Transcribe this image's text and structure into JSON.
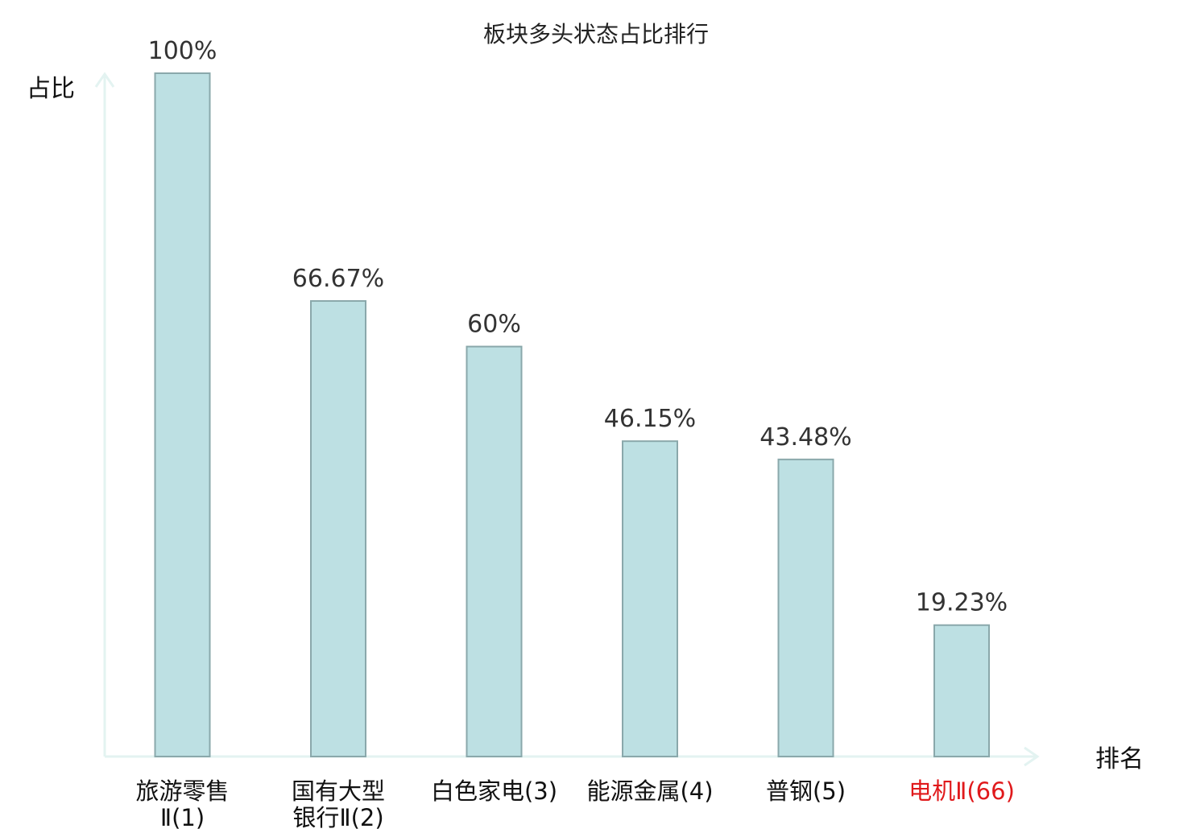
{
  "chart_data": {
    "type": "bar",
    "title": "板块多头状态占比排行",
    "ylabel": "占比",
    "xlabel": "排名",
    "ylim": [
      0,
      100
    ],
    "grid": false,
    "categories": [
      [
        "旅游零售",
        "Ⅱ(1)"
      ],
      [
        "国有大型",
        "银行Ⅱ(2)"
      ],
      [
        "白色家电(3)"
      ],
      [
        "能源金属(4)"
      ],
      [
        "普钢(5)"
      ],
      [
        "电机Ⅱ(66)"
      ]
    ],
    "values": [
      100,
      66.67,
      60,
      46.15,
      43.48,
      19.23
    ],
    "value_labels": [
      "100%",
      "66.67%",
      "60%",
      "46.15%",
      "43.48%",
      "19.23%"
    ],
    "highlight_index": 5,
    "colors": {
      "bar_fill": "#bde0e3",
      "bar_stroke": "#8aa8ab",
      "axis": "#e3f3f1",
      "highlight_text": "#e0191b"
    }
  }
}
